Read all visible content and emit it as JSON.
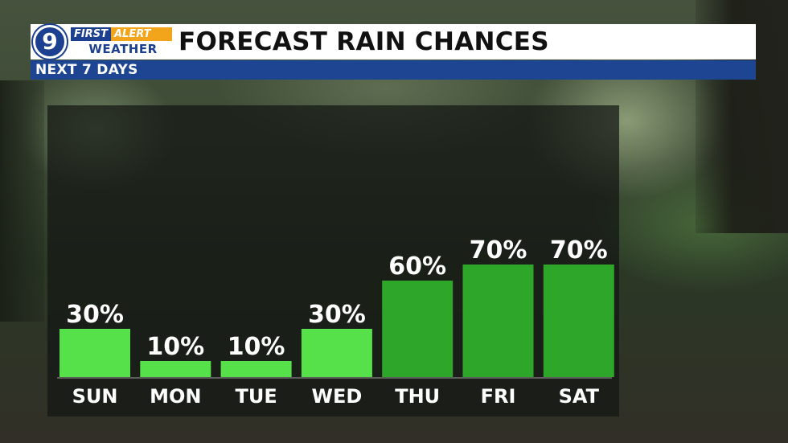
{
  "header": {
    "logo_number": "9",
    "brand_first": "FIRST",
    "brand_alert": "ALERT",
    "brand_weather": "WEATHER",
    "title": "FORECAST RAIN CHANCES",
    "subtitle": "NEXT 7 DAYS"
  },
  "colors": {
    "light_green": "#56e14a",
    "dark_green": "#2ea62a",
    "header_blue": "#1e4592",
    "alert_orange": "#f2a41b"
  },
  "chart_data": {
    "type": "bar",
    "title": "FORECAST RAIN CHANCES",
    "categories": [
      "SUN",
      "MON",
      "TUE",
      "WED",
      "THU",
      "FRI",
      "SAT"
    ],
    "values": [
      30,
      10,
      10,
      30,
      60,
      70,
      70
    ],
    "value_labels": [
      "30%",
      "10%",
      "10%",
      "30%",
      "60%",
      "70%",
      "70%"
    ],
    "unit": "%",
    "ylim": [
      0,
      100
    ],
    "grid": false,
    "legend": "none"
  }
}
